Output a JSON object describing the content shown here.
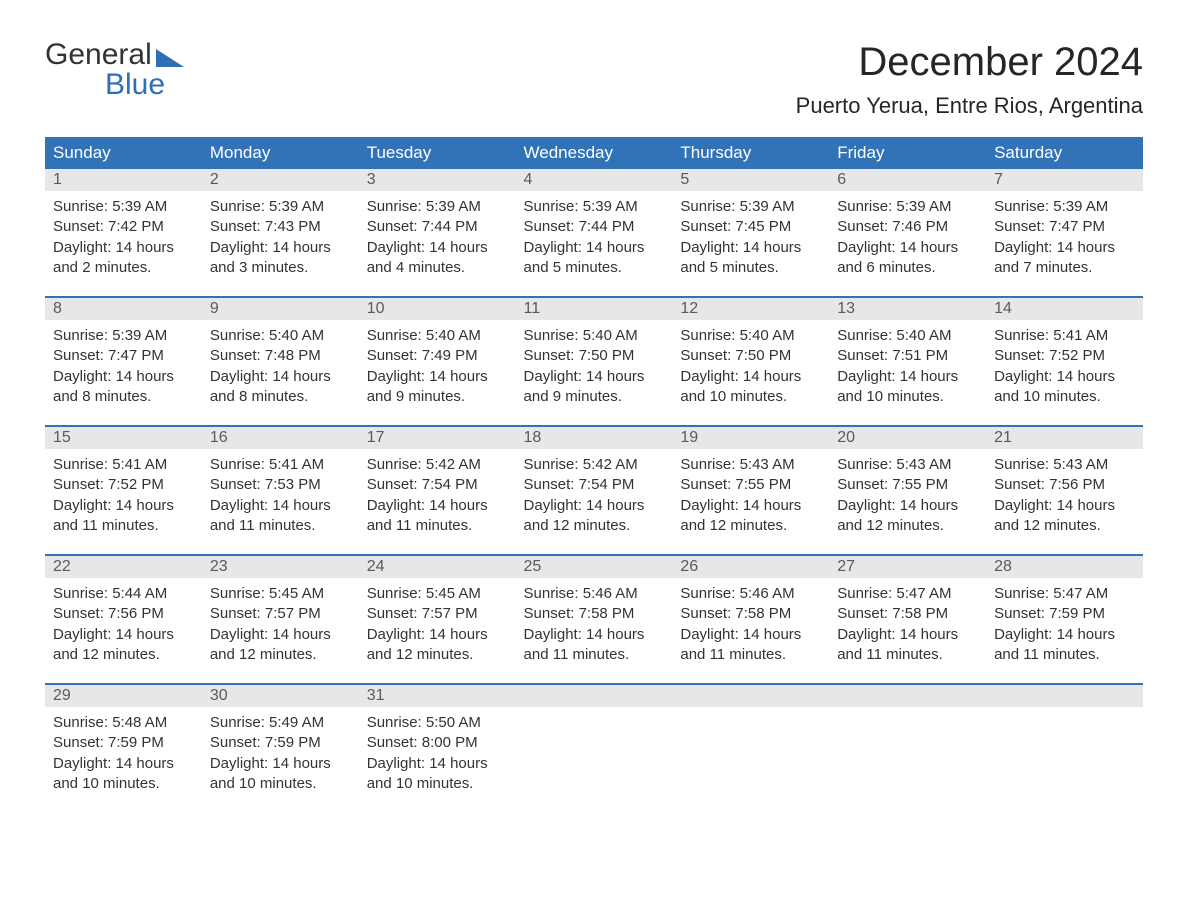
{
  "logo": {
    "word1": "General",
    "word2": "Blue"
  },
  "title": "December 2024",
  "location": "Puerto Yerua, Entre Rios, Argentina",
  "colors": {
    "header_bg": "#3273b8",
    "header_text": "#ffffff",
    "daynum_bg": "#e7e7e7",
    "daynum_text": "#5a5a5a",
    "body_text": "#333333",
    "row_divider": "#3273b8",
    "logo_accent": "#2f6fb3"
  },
  "day_headers": [
    "Sunday",
    "Monday",
    "Tuesday",
    "Wednesday",
    "Thursday",
    "Friday",
    "Saturday"
  ],
  "weeks": [
    [
      {
        "n": "1",
        "sr": "Sunrise: 5:39 AM",
        "ss": "Sunset: 7:42 PM",
        "d1": "Daylight: 14 hours",
        "d2": "and 2 minutes."
      },
      {
        "n": "2",
        "sr": "Sunrise: 5:39 AM",
        "ss": "Sunset: 7:43 PM",
        "d1": "Daylight: 14 hours",
        "d2": "and 3 minutes."
      },
      {
        "n": "3",
        "sr": "Sunrise: 5:39 AM",
        "ss": "Sunset: 7:44 PM",
        "d1": "Daylight: 14 hours",
        "d2": "and 4 minutes."
      },
      {
        "n": "4",
        "sr": "Sunrise: 5:39 AM",
        "ss": "Sunset: 7:44 PM",
        "d1": "Daylight: 14 hours",
        "d2": "and 5 minutes."
      },
      {
        "n": "5",
        "sr": "Sunrise: 5:39 AM",
        "ss": "Sunset: 7:45 PM",
        "d1": "Daylight: 14 hours",
        "d2": "and 5 minutes."
      },
      {
        "n": "6",
        "sr": "Sunrise: 5:39 AM",
        "ss": "Sunset: 7:46 PM",
        "d1": "Daylight: 14 hours",
        "d2": "and 6 minutes."
      },
      {
        "n": "7",
        "sr": "Sunrise: 5:39 AM",
        "ss": "Sunset: 7:47 PM",
        "d1": "Daylight: 14 hours",
        "d2": "and 7 minutes."
      }
    ],
    [
      {
        "n": "8",
        "sr": "Sunrise: 5:39 AM",
        "ss": "Sunset: 7:47 PM",
        "d1": "Daylight: 14 hours",
        "d2": "and 8 minutes."
      },
      {
        "n": "9",
        "sr": "Sunrise: 5:40 AM",
        "ss": "Sunset: 7:48 PM",
        "d1": "Daylight: 14 hours",
        "d2": "and 8 minutes."
      },
      {
        "n": "10",
        "sr": "Sunrise: 5:40 AM",
        "ss": "Sunset: 7:49 PM",
        "d1": "Daylight: 14 hours",
        "d2": "and 9 minutes."
      },
      {
        "n": "11",
        "sr": "Sunrise: 5:40 AM",
        "ss": "Sunset: 7:50 PM",
        "d1": "Daylight: 14 hours",
        "d2": "and 9 minutes."
      },
      {
        "n": "12",
        "sr": "Sunrise: 5:40 AM",
        "ss": "Sunset: 7:50 PM",
        "d1": "Daylight: 14 hours",
        "d2": "and 10 minutes."
      },
      {
        "n": "13",
        "sr": "Sunrise: 5:40 AM",
        "ss": "Sunset: 7:51 PM",
        "d1": "Daylight: 14 hours",
        "d2": "and 10 minutes."
      },
      {
        "n": "14",
        "sr": "Sunrise: 5:41 AM",
        "ss": "Sunset: 7:52 PM",
        "d1": "Daylight: 14 hours",
        "d2": "and 10 minutes."
      }
    ],
    [
      {
        "n": "15",
        "sr": "Sunrise: 5:41 AM",
        "ss": "Sunset: 7:52 PM",
        "d1": "Daylight: 14 hours",
        "d2": "and 11 minutes."
      },
      {
        "n": "16",
        "sr": "Sunrise: 5:41 AM",
        "ss": "Sunset: 7:53 PM",
        "d1": "Daylight: 14 hours",
        "d2": "and 11 minutes."
      },
      {
        "n": "17",
        "sr": "Sunrise: 5:42 AM",
        "ss": "Sunset: 7:54 PM",
        "d1": "Daylight: 14 hours",
        "d2": "and 11 minutes."
      },
      {
        "n": "18",
        "sr": "Sunrise: 5:42 AM",
        "ss": "Sunset: 7:54 PM",
        "d1": "Daylight: 14 hours",
        "d2": "and 12 minutes."
      },
      {
        "n": "19",
        "sr": "Sunrise: 5:43 AM",
        "ss": "Sunset: 7:55 PM",
        "d1": "Daylight: 14 hours",
        "d2": "and 12 minutes."
      },
      {
        "n": "20",
        "sr": "Sunrise: 5:43 AM",
        "ss": "Sunset: 7:55 PM",
        "d1": "Daylight: 14 hours",
        "d2": "and 12 minutes."
      },
      {
        "n": "21",
        "sr": "Sunrise: 5:43 AM",
        "ss": "Sunset: 7:56 PM",
        "d1": "Daylight: 14 hours",
        "d2": "and 12 minutes."
      }
    ],
    [
      {
        "n": "22",
        "sr": "Sunrise: 5:44 AM",
        "ss": "Sunset: 7:56 PM",
        "d1": "Daylight: 14 hours",
        "d2": "and 12 minutes."
      },
      {
        "n": "23",
        "sr": "Sunrise: 5:45 AM",
        "ss": "Sunset: 7:57 PM",
        "d1": "Daylight: 14 hours",
        "d2": "and 12 minutes."
      },
      {
        "n": "24",
        "sr": "Sunrise: 5:45 AM",
        "ss": "Sunset: 7:57 PM",
        "d1": "Daylight: 14 hours",
        "d2": "and 12 minutes."
      },
      {
        "n": "25",
        "sr": "Sunrise: 5:46 AM",
        "ss": "Sunset: 7:58 PM",
        "d1": "Daylight: 14 hours",
        "d2": "and 11 minutes."
      },
      {
        "n": "26",
        "sr": "Sunrise: 5:46 AM",
        "ss": "Sunset: 7:58 PM",
        "d1": "Daylight: 14 hours",
        "d2": "and 11 minutes."
      },
      {
        "n": "27",
        "sr": "Sunrise: 5:47 AM",
        "ss": "Sunset: 7:58 PM",
        "d1": "Daylight: 14 hours",
        "d2": "and 11 minutes."
      },
      {
        "n": "28",
        "sr": "Sunrise: 5:47 AM",
        "ss": "Sunset: 7:59 PM",
        "d1": "Daylight: 14 hours",
        "d2": "and 11 minutes."
      }
    ],
    [
      {
        "n": "29",
        "sr": "Sunrise: 5:48 AM",
        "ss": "Sunset: 7:59 PM",
        "d1": "Daylight: 14 hours",
        "d2": "and 10 minutes."
      },
      {
        "n": "30",
        "sr": "Sunrise: 5:49 AM",
        "ss": "Sunset: 7:59 PM",
        "d1": "Daylight: 14 hours",
        "d2": "and 10 minutes."
      },
      {
        "n": "31",
        "sr": "Sunrise: 5:50 AM",
        "ss": "Sunset: 8:00 PM",
        "d1": "Daylight: 14 hours",
        "d2": "and 10 minutes."
      },
      null,
      null,
      null,
      null
    ]
  ]
}
